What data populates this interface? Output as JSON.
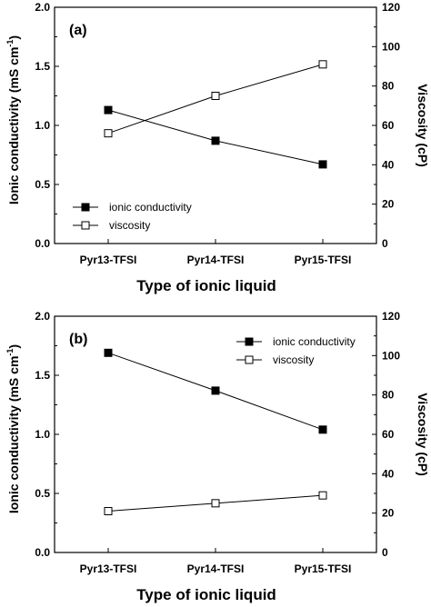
{
  "chart_data": [
    {
      "type": "line",
      "panel_label": "(a)",
      "categories": [
        "Pyr13-TFSI",
        "Pyr14-TFSI",
        "Pyr15-TFSI"
      ],
      "xlabel": "Type of ionic liquid",
      "ylabel": "Ionic conductivity (mS cm",
      "ylabel_sup": "-1",
      "ylabel_end": ")",
      "y2label": "Viscosity (cP)",
      "ylim": [
        0,
        2.0
      ],
      "y2lim": [
        0,
        120
      ],
      "yticks": [
        "0.0",
        "0.5",
        "1.0",
        "1.5",
        "2.0"
      ],
      "y2ticks": [
        "0",
        "20",
        "40",
        "60",
        "80",
        "100",
        "120"
      ],
      "legend_position": "lower-left",
      "series": [
        {
          "name": "ionic conductivity",
          "axis": "left",
          "marker": "filled-square",
          "values": [
            1.13,
            0.87,
            0.67
          ]
        },
        {
          "name": "viscosity",
          "axis": "right",
          "marker": "open-square",
          "values": [
            56,
            75,
            91
          ]
        }
      ]
    },
    {
      "type": "line",
      "panel_label": "(b)",
      "categories": [
        "Pyr13-TFSI",
        "Pyr14-TFSI",
        "Pyr15-TFSI"
      ],
      "xlabel": "Type of ionic liquid",
      "ylabel": "Ionic conductivity (mS cm",
      "ylabel_sup": "-1",
      "ylabel_end": ")",
      "y2label": "Viscosity (cP)",
      "ylim": [
        0,
        2.0
      ],
      "y2lim": [
        0,
        120
      ],
      "yticks": [
        "0.0",
        "0.5",
        "1.0",
        "1.5",
        "2.0"
      ],
      "y2ticks": [
        "0",
        "20",
        "40",
        "60",
        "80",
        "100",
        "120"
      ],
      "legend_position": "top-right",
      "series": [
        {
          "name": "ionic conductivity",
          "axis": "left",
          "marker": "filled-square",
          "values": [
            1.69,
            1.37,
            1.04
          ]
        },
        {
          "name": "viscosity",
          "axis": "right",
          "marker": "open-square",
          "values": [
            21,
            25,
            29
          ]
        }
      ]
    }
  ]
}
